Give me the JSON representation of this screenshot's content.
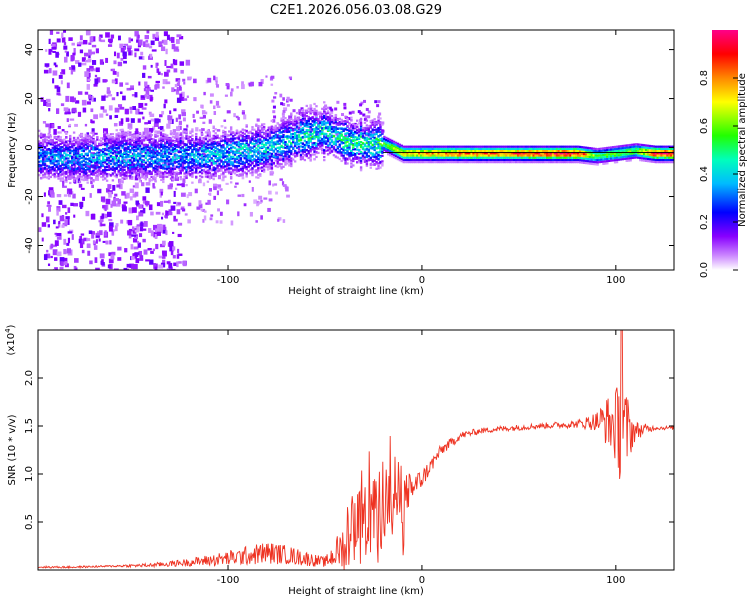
{
  "title": "C2E1.2026.056.03.08.G29",
  "chart_data": [
    {
      "type": "heatmap",
      "xlabel": "Height of straight line (km)",
      "ylabel": "Frequency (Hz)",
      "xlim": [
        -198,
        130
      ],
      "ylim": [
        -50,
        48
      ],
      "xticks": [
        -100,
        0,
        100
      ],
      "xtick_labels": [
        "-100",
        "0",
        "100"
      ],
      "yticks": [
        -40,
        -20,
        0,
        20,
        40
      ],
      "ytick_labels": [
        "-40",
        "-20",
        "0",
        "20",
        "40"
      ],
      "colorbar": {
        "label": "Normalized spectral amplitude",
        "range": [
          0,
          1
        ],
        "ticks": [
          0.0,
          0.2,
          0.4,
          0.6,
          0.8
        ],
        "tick_labels": [
          "0.0",
          "0.2",
          "0.4",
          "0.6",
          "0.8"
        ]
      },
      "ridge": {
        "x": [
          -198,
          -180,
          -160,
          -140,
          -120,
          -100,
          -80,
          -70,
          -60,
          -50,
          -40,
          -30,
          -20,
          -10,
          0,
          20,
          40,
          60,
          80,
          90,
          100,
          110,
          120,
          130
        ],
        "center_hz": [
          -3,
          -4,
          -3,
          -3,
          -3,
          -2,
          0,
          3,
          6,
          7,
          3,
          2,
          2,
          -2,
          -2,
          -2,
          -2,
          -2,
          -2,
          -3,
          -2,
          -1,
          -2,
          -2
        ],
        "peak_amplitude": [
          0.35,
          0.4,
          0.4,
          0.4,
          0.4,
          0.45,
          0.45,
          0.45,
          0.5,
          0.5,
          0.5,
          0.55,
          0.55,
          0.75,
          0.8,
          0.85,
          0.85,
          0.9,
          0.95,
          0.55,
          0.6,
          0.6,
          0.95,
          0.95
        ]
      }
    },
    {
      "type": "line",
      "xlabel": "Height of straight line (km)",
      "ylabel": "SNR (10 * v/v)",
      "multiplier": "(x10",
      "multiplier_exp": "4",
      "multiplier_close": ")",
      "xlim": [
        -198,
        130
      ],
      "ylim": [
        0,
        2.5
      ],
      "xticks": [
        -100,
        0,
        100
      ],
      "xtick_labels": [
        "-100",
        "0",
        "100"
      ],
      "yticks": [
        0.5,
        1.0,
        1.5,
        2.0
      ],
      "ytick_labels": [
        "0.5",
        "1.0",
        "1.5",
        "2.0"
      ],
      "series": [
        {
          "name": "SNR",
          "color": "#ee3322",
          "x": [
            -198,
            -180,
            -160,
            -140,
            -120,
            -100,
            -90,
            -80,
            -70,
            -60,
            -50,
            -40,
            -35,
            -30,
            -25,
            -20,
            -15,
            -10,
            -5,
            0,
            5,
            10,
            20,
            30,
            40,
            60,
            80,
            90,
            95,
            100,
            103,
            105,
            110,
            120,
            130
          ],
          "base": [
            0.03,
            0.03,
            0.04,
            0.05,
            0.08,
            0.12,
            0.15,
            0.18,
            0.16,
            0.12,
            0.08,
            0.25,
            0.45,
            0.55,
            0.65,
            0.7,
            0.75,
            0.78,
            0.85,
            0.95,
            1.1,
            1.25,
            1.4,
            1.45,
            1.47,
            1.5,
            1.52,
            1.55,
            1.55,
            1.5,
            1.45,
            1.45,
            1.45,
            1.48,
            1.48
          ],
          "noise": [
            0.01,
            0.01,
            0.01,
            0.02,
            0.04,
            0.08,
            0.1,
            0.12,
            0.1,
            0.08,
            0.05,
            0.25,
            0.35,
            0.35,
            0.45,
            0.5,
            0.45,
            0.3,
            0.15,
            0.1,
            0.08,
            0.06,
            0.04,
            0.03,
            0.03,
            0.03,
            0.04,
            0.1,
            0.25,
            0.4,
            0.6,
            0.45,
            0.1,
            0.02,
            0.02
          ],
          "peak_spike": {
            "x": 103,
            "value": 2.5
          }
        }
      ]
    }
  ]
}
